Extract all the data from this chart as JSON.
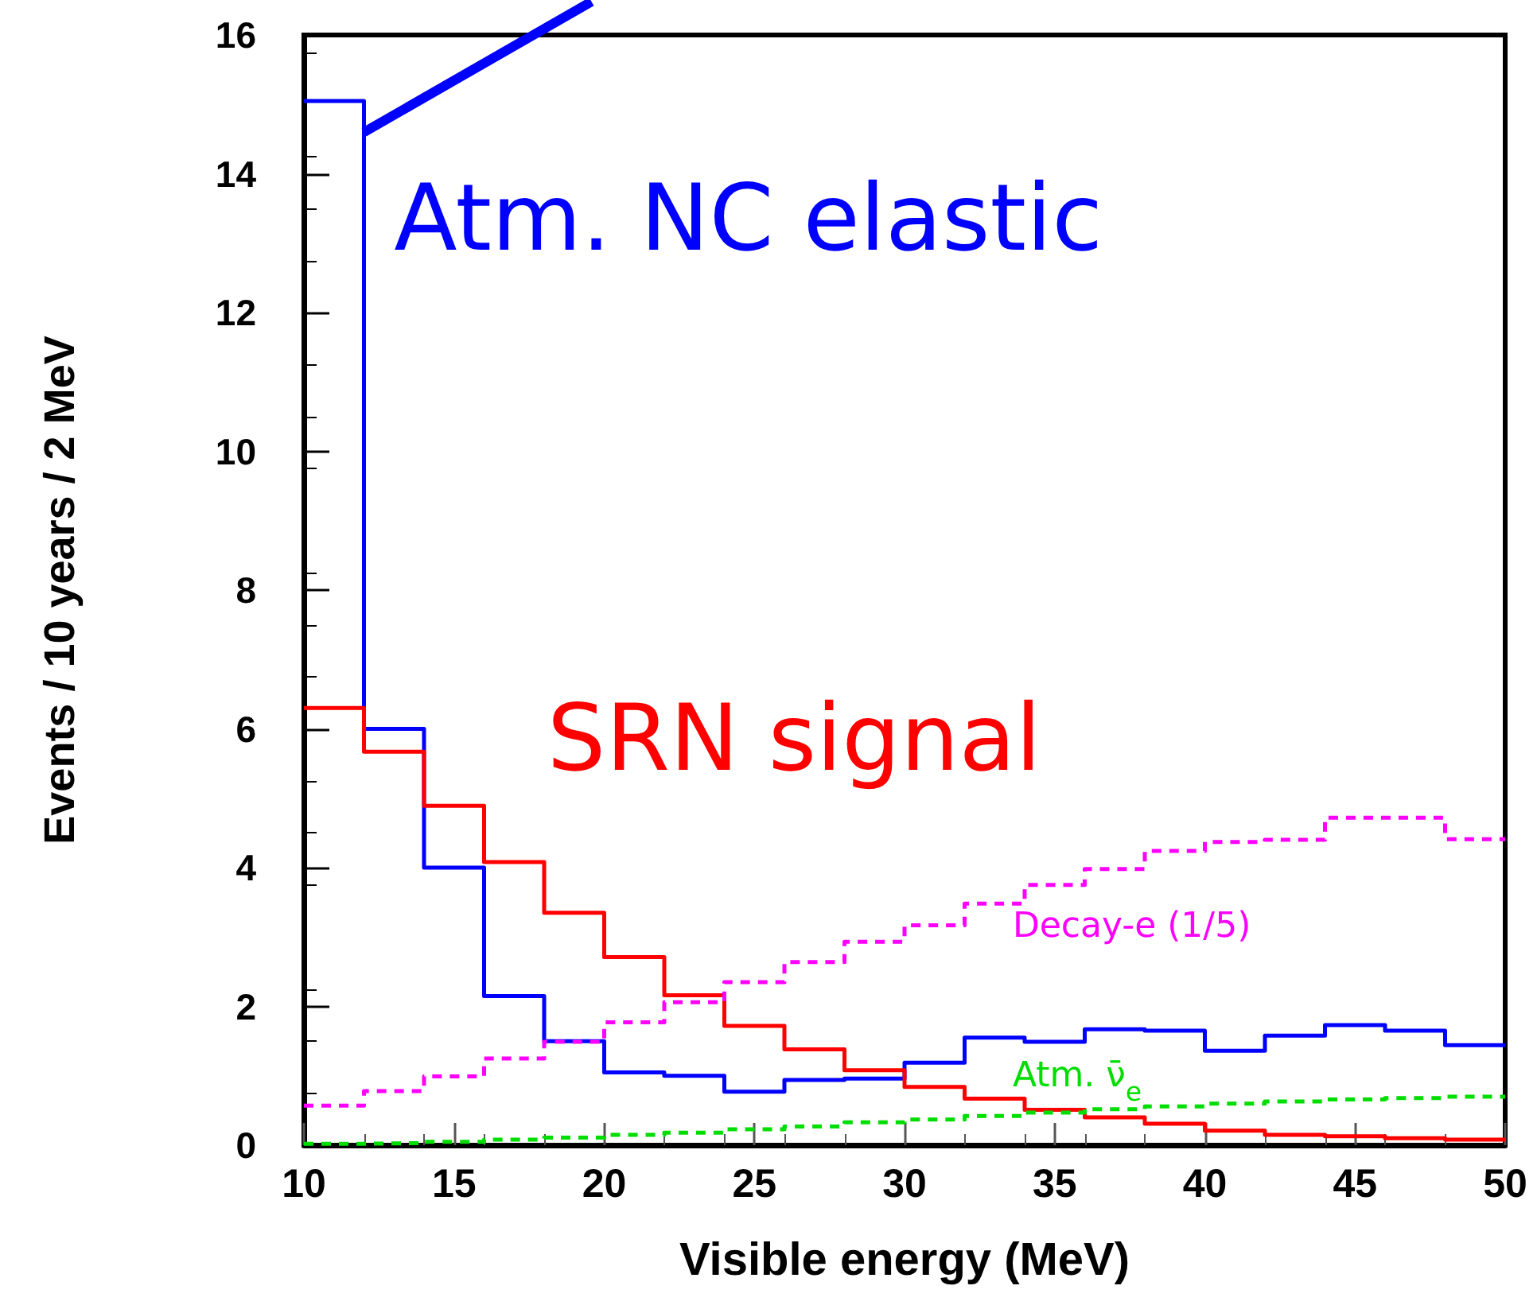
{
  "chart_data": {
    "type": "histogram",
    "xlabel": "Visible energy (MeV)",
    "ylabel": "Events / 10 years / 2 MeV",
    "bins": [
      10,
      12,
      14,
      16,
      18,
      20,
      22,
      24,
      26,
      28,
      30,
      32,
      34,
      36,
      38,
      40,
      42,
      44,
      46,
      48,
      50
    ],
    "series": [
      {
        "name": "Atm. NC elastic",
        "color": "#0000ff",
        "line_style": "solid",
        "values": [
          15.05,
          6.0,
          4.0,
          2.15,
          1.5,
          1.05,
          1.0,
          0.77,
          0.94,
          0.96,
          1.19,
          1.55,
          1.49,
          1.67,
          1.65,
          1.36,
          1.58,
          1.73,
          1.65,
          1.44
        ]
      },
      {
        "name": "SRN signal",
        "color": "#ff0000",
        "line_style": "solid",
        "values": [
          6.3,
          5.67,
          4.89,
          4.08,
          3.35,
          2.71,
          2.16,
          1.72,
          1.38,
          1.08,
          0.84,
          0.67,
          0.51,
          0.4,
          0.31,
          0.21,
          0.15,
          0.13,
          0.1,
          0.08
        ]
      },
      {
        "name": "Decay-e (1/5)",
        "color": "#ff00ff",
        "line_style": "dashed",
        "values": [
          0.57,
          0.78,
          0.99,
          1.25,
          1.49,
          1.77,
          2.06,
          2.35,
          2.64,
          2.93,
          3.17,
          3.48,
          3.75,
          3.98,
          4.24,
          4.37,
          4.4,
          4.72,
          4.72,
          4.41
        ]
      },
      {
        "name": "Atm. ν̄$_{e}$",
        "color": "#00dd00",
        "line_style": "dashed",
        "values": [
          0.02,
          0.03,
          0.05,
          0.08,
          0.11,
          0.15,
          0.18,
          0.23,
          0.27,
          0.33,
          0.37,
          0.42,
          0.47,
          0.52,
          0.56,
          0.6,
          0.63,
          0.66,
          0.68,
          0.7
        ]
      }
    ],
    "xlim": [
      10,
      50
    ],
    "xticks": [
      10,
      15,
      20,
      25,
      30,
      35,
      40,
      45,
      50
    ],
    "ylim": [
      0,
      16
    ],
    "yticks": [
      0,
      2,
      4,
      6,
      8,
      10,
      12,
      14,
      16
    ],
    "grid": false,
    "legend": false
  }
}
